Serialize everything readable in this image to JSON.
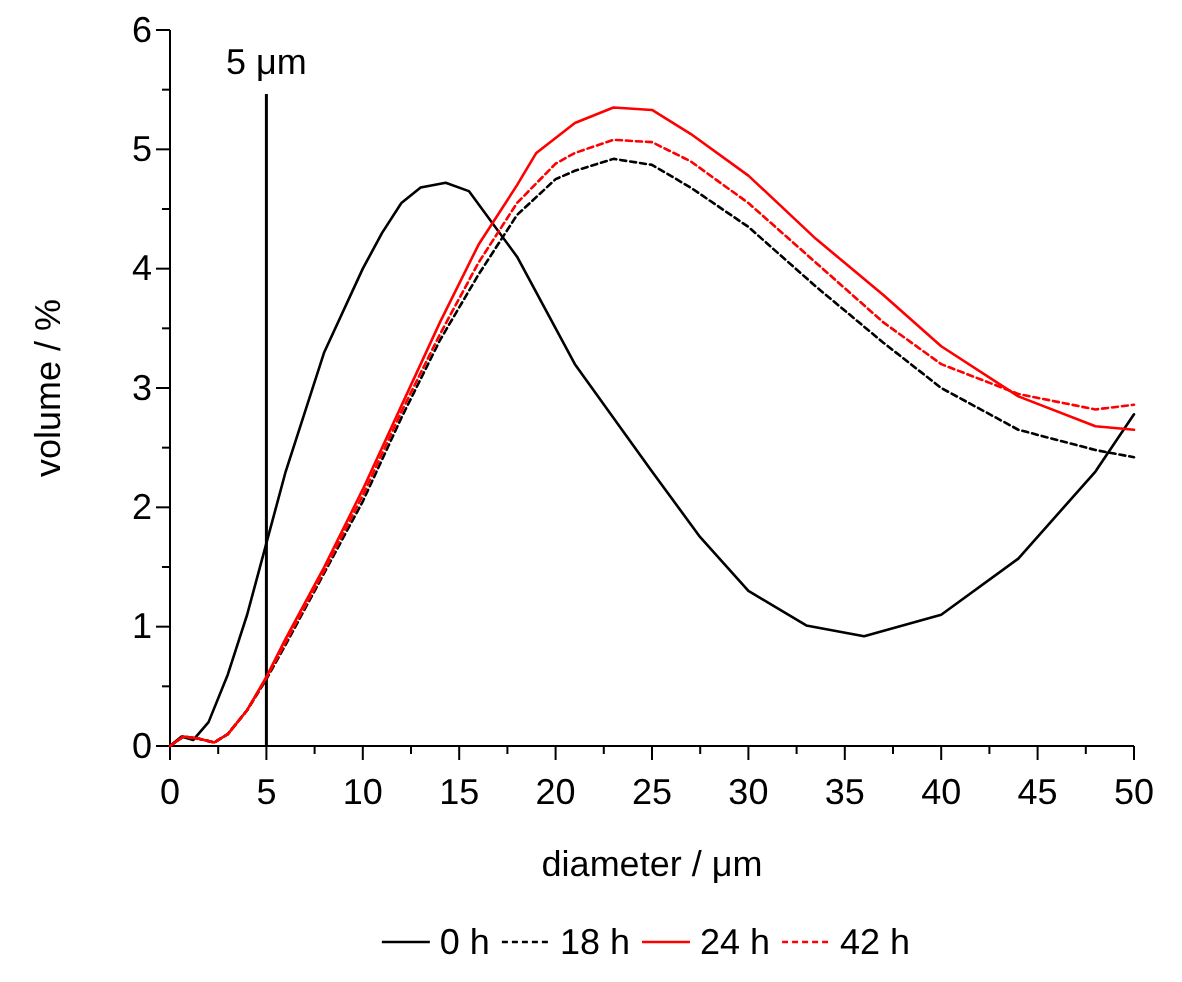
{
  "chart_data": {
    "type": "line",
    "xlabel": "diameter / μm",
    "ylabel": "volume / %",
    "xlim": [
      0,
      50
    ],
    "ylim": [
      0,
      6
    ],
    "xticks": [
      0,
      {
        "value": 2.5,
        "label": null
      },
      5,
      {
        "value": 7.5,
        "label": null
      },
      10,
      {
        "value": 12.5,
        "label": null
      },
      15,
      {
        "value": 17.5,
        "label": null
      },
      20,
      {
        "value": 22.5,
        "label": null
      },
      25,
      {
        "value": 27.5,
        "label": null
      },
      30,
      {
        "value": 32.5,
        "label": null
      },
      35,
      {
        "value": 37.5,
        "label": null
      },
      40,
      {
        "value": 42.5,
        "label": null
      },
      45,
      {
        "value": 47.5,
        "label": null
      },
      50
    ],
    "yticks": [
      0,
      {
        "value": 0.5,
        "label": null
      },
      1,
      {
        "value": 1.5,
        "label": null
      },
      2,
      {
        "value": 2.5,
        "label": null
      },
      3,
      {
        "value": 3.5,
        "label": null
      },
      4,
      {
        "value": 4.5,
        "label": null
      },
      5,
      {
        "value": 5.5,
        "label": null
      },
      6
    ],
    "legend": "bottom",
    "grid": false,
    "marker": "none",
    "ref_lines": [
      {
        "axis": "x",
        "value": 5,
        "label": "5 μm",
        "color": "#000000"
      }
    ],
    "series": [
      {
        "name": "0 h",
        "color": "#000000",
        "line_style": "solid",
        "x": [
          0,
          0.6,
          1.2,
          2,
          3,
          4,
          5,
          6,
          8,
          10,
          11,
          12,
          13,
          14.3,
          15.5,
          18,
          21,
          25,
          27.5,
          30,
          33,
          36,
          40,
          44,
          48,
          50
        ],
        "values": [
          0,
          0.08,
          0.05,
          0.2,
          0.6,
          1.1,
          1.7,
          2.3,
          3.3,
          4.0,
          4.3,
          4.55,
          4.68,
          4.72,
          4.65,
          4.1,
          3.2,
          2.3,
          1.75,
          1.3,
          1.01,
          0.92,
          1.1,
          1.57,
          2.3,
          2.78
        ]
      },
      {
        "name": "18 h",
        "color": "#000000",
        "line_style": "dashed",
        "x": [
          0,
          0.7,
          1.5,
          2.3,
          3,
          4,
          5,
          6,
          8,
          10,
          12,
          14,
          16,
          18,
          20,
          21,
          23,
          25,
          27,
          30,
          33.5,
          37,
          40,
          44,
          48,
          50
        ],
        "values": [
          0,
          0.08,
          0.06,
          0.03,
          0.1,
          0.3,
          0.56,
          0.85,
          1.45,
          2.05,
          2.75,
          3.4,
          3.95,
          4.45,
          4.75,
          4.82,
          4.92,
          4.87,
          4.68,
          4.35,
          3.85,
          3.38,
          3.0,
          2.65,
          2.48,
          2.42
        ]
      },
      {
        "name": "24 h",
        "color": "#ff0000",
        "line_style": "solid",
        "x": [
          0,
          0.7,
          1.5,
          2.3,
          3,
          4,
          5,
          6,
          8,
          10,
          12,
          14,
          16,
          18,
          19,
          21,
          23,
          25,
          27,
          30,
          33.5,
          37,
          40,
          44,
          48,
          50
        ],
        "values": [
          0,
          0.08,
          0.06,
          0.03,
          0.1,
          0.3,
          0.58,
          0.9,
          1.5,
          2.15,
          2.85,
          3.55,
          4.2,
          4.7,
          4.97,
          5.22,
          5.35,
          5.33,
          5.13,
          4.78,
          4.25,
          3.78,
          3.35,
          2.93,
          2.68,
          2.65
        ]
      },
      {
        "name": "42 h",
        "color": "#ff0000",
        "line_style": "dashed",
        "x": [
          0,
          0.7,
          1.5,
          2.3,
          3,
          4,
          5,
          6,
          8,
          10,
          12,
          14,
          16,
          18,
          20,
          21,
          23,
          25,
          27,
          30,
          33.5,
          37,
          40,
          44,
          48,
          50
        ],
        "values": [
          0,
          0.08,
          0.06,
          0.03,
          0.1,
          0.3,
          0.57,
          0.87,
          1.47,
          2.1,
          2.8,
          3.45,
          4.05,
          4.55,
          4.88,
          4.97,
          5.08,
          5.06,
          4.9,
          4.55,
          4.05,
          3.55,
          3.2,
          2.95,
          2.82,
          2.86
        ]
      }
    ]
  }
}
